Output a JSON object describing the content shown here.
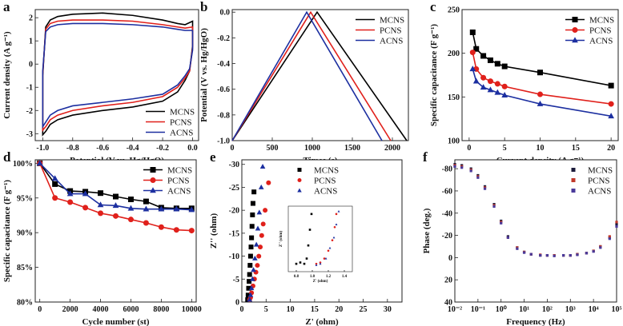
{
  "chart_data": [
    {
      "panel": "a",
      "type": "line",
      "x_label": "Potential (V vs. Hg/HgO)",
      "y_label": "Current density (A g⁻¹)",
      "xlim": [
        -1.05,
        0.04
      ],
      "ylim": [
        -3.3,
        2.35
      ],
      "xticks": [
        {
          "value": -1.0,
          "label": "-1.0"
        },
        -0.8,
        -0.6,
        -0.4,
        -0.2,
        {
          "value": 0.0,
          "label": "0.0"
        }
      ],
      "yticks": [
        -3,
        -2,
        -1,
        0,
        1,
        2
      ],
      "legend": "lower right",
      "x": [
        -1.0,
        -0.98,
        -0.95,
        -0.9,
        -0.8,
        -0.6,
        -0.4,
        -0.2,
        -0.1,
        -0.05,
        0.0,
        0.0,
        -0.02,
        -0.05,
        -0.1,
        -0.2,
        -0.4,
        -0.6,
        -0.8,
        -0.9,
        -0.95,
        -0.98,
        -1.0,
        -1.0
      ],
      "series": [
        {
          "name": "MCNS",
          "color": "#000000",
          "values": [
            -0.5,
            1.6,
            1.9,
            2.05,
            2.15,
            2.2,
            2.1,
            1.9,
            1.75,
            1.7,
            1.85,
            0.8,
            -0.3,
            -0.7,
            -1.2,
            -1.6,
            -1.85,
            -2.0,
            -2.2,
            -2.4,
            -2.6,
            -2.9,
            -3.05,
            -0.5
          ]
        },
        {
          "name": "PCNS",
          "color": "#e0201b",
          "values": [
            -0.4,
            1.5,
            1.75,
            1.85,
            1.9,
            1.9,
            1.85,
            1.7,
            1.6,
            1.55,
            1.6,
            0.7,
            -0.3,
            -0.6,
            -1.0,
            -1.4,
            -1.65,
            -1.8,
            -2.0,
            -2.2,
            -2.4,
            -2.7,
            -2.85,
            -0.4
          ]
        },
        {
          "name": "ACNS",
          "color": "#1c2fa0",
          "values": [
            -0.3,
            1.4,
            1.6,
            1.7,
            1.75,
            1.75,
            1.7,
            1.6,
            1.5,
            1.45,
            1.45,
            0.6,
            -0.2,
            -0.5,
            -0.9,
            -1.3,
            -1.5,
            -1.65,
            -1.8,
            -2.0,
            -2.2,
            -2.5,
            -2.7,
            -0.3
          ]
        }
      ]
    },
    {
      "panel": "b",
      "type": "line",
      "x_label": "Times (s)",
      "y_label": "Potential (V vs. Hg/HgO)",
      "xlim": [
        0,
        2200
      ],
      "ylim": [
        -1.0,
        0.02
      ],
      "xticks": [
        0,
        500,
        1000,
        1500,
        2000
      ],
      "yticks": [
        {
          "value": 0,
          "label": "0.0"
        },
        -0.2,
        -0.4,
        -0.6,
        -0.8,
        {
          "value": -1,
          "label": "-1.0"
        }
      ],
      "legend": "upper right",
      "series": [
        {
          "name": "MCNS",
          "color": "#000000",
          "x": [
            0,
            1060,
            2180
          ],
          "values": [
            -1,
            0,
            -1
          ]
        },
        {
          "name": "PCNS",
          "color": "#e0201b",
          "x": [
            0,
            980,
            1980
          ],
          "values": [
            -1,
            0,
            -1
          ]
        },
        {
          "name": "ACNS",
          "color": "#1c2fa0",
          "x": [
            0,
            930,
            1870
          ],
          "values": [
            -1,
            0,
            -1
          ]
        }
      ]
    },
    {
      "panel": "c",
      "type": "line",
      "x_label": "Current density (A g⁻¹)",
      "y_label": "Specific capacitance (F g⁻¹)",
      "xlim": [
        -1,
        21
      ],
      "ylim": [
        100,
        250
      ],
      "xticks": [
        0,
        5,
        10,
        15,
        20
      ],
      "yticks": [
        100,
        150,
        200,
        250
      ],
      "legend": "upper right",
      "x": [
        0.5,
        1,
        2,
        3,
        4,
        5,
        10,
        20
      ],
      "series": [
        {
          "name": "MCNS",
          "color": "#000000",
          "marker": "square",
          "values": [
            224,
            205,
            197,
            192,
            188,
            185,
            178,
            163
          ]
        },
        {
          "name": "PCNS",
          "color": "#e0201b",
          "marker": "circle",
          "values": [
            201,
            182,
            172,
            168,
            165,
            162,
            153,
            142
          ]
        },
        {
          "name": "ACNS",
          "color": "#1c2fa0",
          "marker": "triangle",
          "values": [
            182,
            168,
            161,
            158,
            155,
            152,
            142,
            128
          ]
        }
      ]
    },
    {
      "panel": "d",
      "type": "line",
      "x_label": "Cycle number (st)",
      "y_label": "Specific capacitance (F g⁻¹)",
      "xlim": [
        -300,
        10300
      ],
      "ylim": [
        80,
        100.5
      ],
      "xticks": [
        0,
        2000,
        4000,
        6000,
        8000,
        10000
      ],
      "yticks": [
        {
          "value": 80,
          "label": "80%"
        },
        {
          "value": 85,
          "label": "85%"
        },
        {
          "value": 90,
          "label": "90%"
        },
        {
          "value": 95,
          "label": "95%"
        },
        {
          "value": 100,
          "label": "100%"
        }
      ],
      "legend": "upper right",
      "x": [
        0,
        1000,
        2000,
        3000,
        4000,
        5000,
        6000,
        7000,
        8000,
        9000,
        10000
      ],
      "series": [
        {
          "name": "MCNS",
          "color": "#000000",
          "marker": "square",
          "values": [
            100,
            97,
            96,
            95.9,
            95.7,
            95.2,
            94.8,
            94.5,
            93.6,
            93.5,
            93.5
          ]
        },
        {
          "name": "PCNS",
          "color": "#e0201b",
          "marker": "circle",
          "values": [
            100,
            95,
            94.4,
            93.6,
            92.8,
            92.4,
            91.9,
            91.4,
            90.8,
            90.4,
            90.3
          ]
        },
        {
          "name": "ACNS",
          "color": "#1c2fa0",
          "marker": "triangle",
          "values": [
            100,
            97.8,
            95.6,
            95.6,
            94,
            93.9,
            93.5,
            93.4,
            93.4,
            93.4,
            93.3
          ]
        }
      ]
    },
    {
      "panel": "e",
      "type": "scatter",
      "x_label": "Z' (ohm)",
      "y_label": "Z'' (ohm)",
      "xlim": [
        0,
        33
      ],
      "ylim": [
        0,
        -31
      ],
      "xticks": [
        0,
        5,
        10,
        15,
        20,
        25,
        30
      ],
      "yticks": [
        0,
        -5,
        -10,
        -15,
        -20,
        -25,
        -30
      ],
      "legend": "upper left",
      "series": [
        {
          "name": "MCNS",
          "color": "#000000",
          "marker": "square",
          "x": [
            1.2,
            1.3,
            1.4,
            1.5,
            1.6,
            1.7,
            1.8,
            1.9,
            2.0,
            2.1,
            2.2,
            2.3,
            2.5
          ],
          "values": [
            -0.5,
            -1.5,
            -3,
            -4.5,
            -6,
            -8,
            -10,
            -12,
            -14,
            -16.5,
            -19,
            -21.5,
            -24
          ]
        },
        {
          "name": "PCNS",
          "color": "#e0201b",
          "marker": "circle",
          "x": [
            1.6,
            1.8,
            2.0,
            2.3,
            2.6,
            2.9,
            3.2,
            3.5,
            3.8,
            4.1,
            4.4,
            4.8,
            5.5
          ],
          "values": [
            -0.5,
            -1,
            -2,
            -3.5,
            -5,
            -6.5,
            -8,
            -10,
            -12,
            -14.5,
            -17,
            -20,
            -26
          ]
        },
        {
          "name": "ACNS",
          "color": "#1c2fa0",
          "marker": "triangle",
          "x": [
            1.6,
            1.8,
            2.0,
            2.2,
            2.4,
            2.7,
            3.0,
            3.3,
            3.6,
            4.0,
            4.3
          ],
          "values": [
            -0.5,
            -1.5,
            -3,
            -5,
            -7,
            -9.5,
            -12.5,
            -16,
            -19.5,
            -25,
            -29.5
          ]
        }
      ]
    },
    {
      "panel": "f",
      "type": "scatter",
      "x_label": "Frequency (Hz)",
      "y_label": "Phase (deg.)",
      "xscale": "log",
      "xlim": [
        0.01,
        100000
      ],
      "ylim": [
        40,
        -88
      ],
      "xticks": [
        {
          "value": 0.01,
          "label": "10⁻²"
        },
        {
          "value": 0.1,
          "label": "10⁻¹"
        },
        {
          "value": 1,
          "label": "10⁰"
        },
        {
          "value": 10,
          "label": "10¹"
        },
        {
          "value": 100,
          "label": "10²"
        },
        {
          "value": 1000,
          "label": "10³"
        },
        {
          "value": 10000,
          "label": "10⁴"
        },
        {
          "value": 100000,
          "label": "10⁵"
        }
      ],
      "yticks": [
        40,
        20,
        0,
        -20,
        -40,
        -60,
        -80
      ],
      "legend": "upper right",
      "x": [
        0.01,
        0.02,
        0.05,
        0.1,
        0.2,
        0.5,
        1,
        2,
        5,
        10,
        20,
        50,
        100,
        200,
        500,
        1000,
        2000,
        5000,
        10000,
        20000,
        50000,
        100000
      ],
      "series": [
        {
          "name": "MCNS",
          "color": "#1a1a3a",
          "marker": "square",
          "values": [
            -84,
            -83,
            -80,
            -74,
            -64,
            -48,
            -33,
            -19,
            -9,
            -5,
            -3,
            -2,
            -2,
            -2,
            -2,
            -2,
            -3,
            -4,
            -6,
            -10,
            -18,
            -30
          ]
        },
        {
          "name": "PCNS",
          "color": "#c0392b",
          "marker": "square",
          "values": [
            -83,
            -82,
            -79,
            -73,
            -63,
            -47,
            -32,
            -18,
            -9,
            -5,
            -3,
            -2.5,
            -2,
            -2,
            -2,
            -2,
            -3,
            -4,
            -6,
            -10,
            -19,
            -32
          ]
        },
        {
          "name": "ACNS",
          "color": "#4a3a9a",
          "marker": "square",
          "values": [
            -82,
            -81,
            -78,
            -72,
            -62,
            -46,
            -31,
            -18,
            -8,
            -4.5,
            -3,
            -2,
            -2,
            -1.5,
            -2,
            -2,
            -2.5,
            -4,
            -5.5,
            -9,
            -17,
            -28
          ]
        }
      ]
    },
    {
      "type": "scatter",
      "x_label": "Z' (ohm)",
      "y_label": "Z'' (ohm)",
      "xlim": [
        0.7,
        1.5
      ],
      "ylim": [
        0.2,
        -2.3
      ],
      "xticks": [
        0.8,
        {
          "value": 1.0,
          "label": "1.0"
        },
        1.2,
        1.4
      ],
      "series": [
        {
          "name": "MCNS",
          "color": "#000000",
          "marker": "square",
          "x": [
            0.8,
            0.85,
            0.9,
            0.93,
            0.95,
            0.97,
            0.99
          ],
          "values": [
            -0.1,
            -0.15,
            -0.1,
            -0.3,
            -0.8,
            -1.4,
            -2.0
          ]
        },
        {
          "name": "PCNS",
          "color": "#e0201b",
          "marker": "circle",
          "x": [
            1.05,
            1.1,
            1.15,
            1.2,
            1.25,
            1.28,
            1.3
          ],
          "values": [
            -0.1,
            -0.15,
            -0.3,
            -0.6,
            -1.0,
            -1.5,
            -2.0
          ]
        },
        {
          "name": "ACNS",
          "color": "#1c2fa0",
          "marker": "triangle",
          "x": [
            1.05,
            1.1,
            1.17,
            1.22,
            1.27,
            1.3,
            1.33
          ],
          "values": [
            -0.05,
            -0.1,
            -0.3,
            -0.7,
            -1.1,
            -1.6,
            -2.1
          ]
        }
      ]
    }
  ]
}
